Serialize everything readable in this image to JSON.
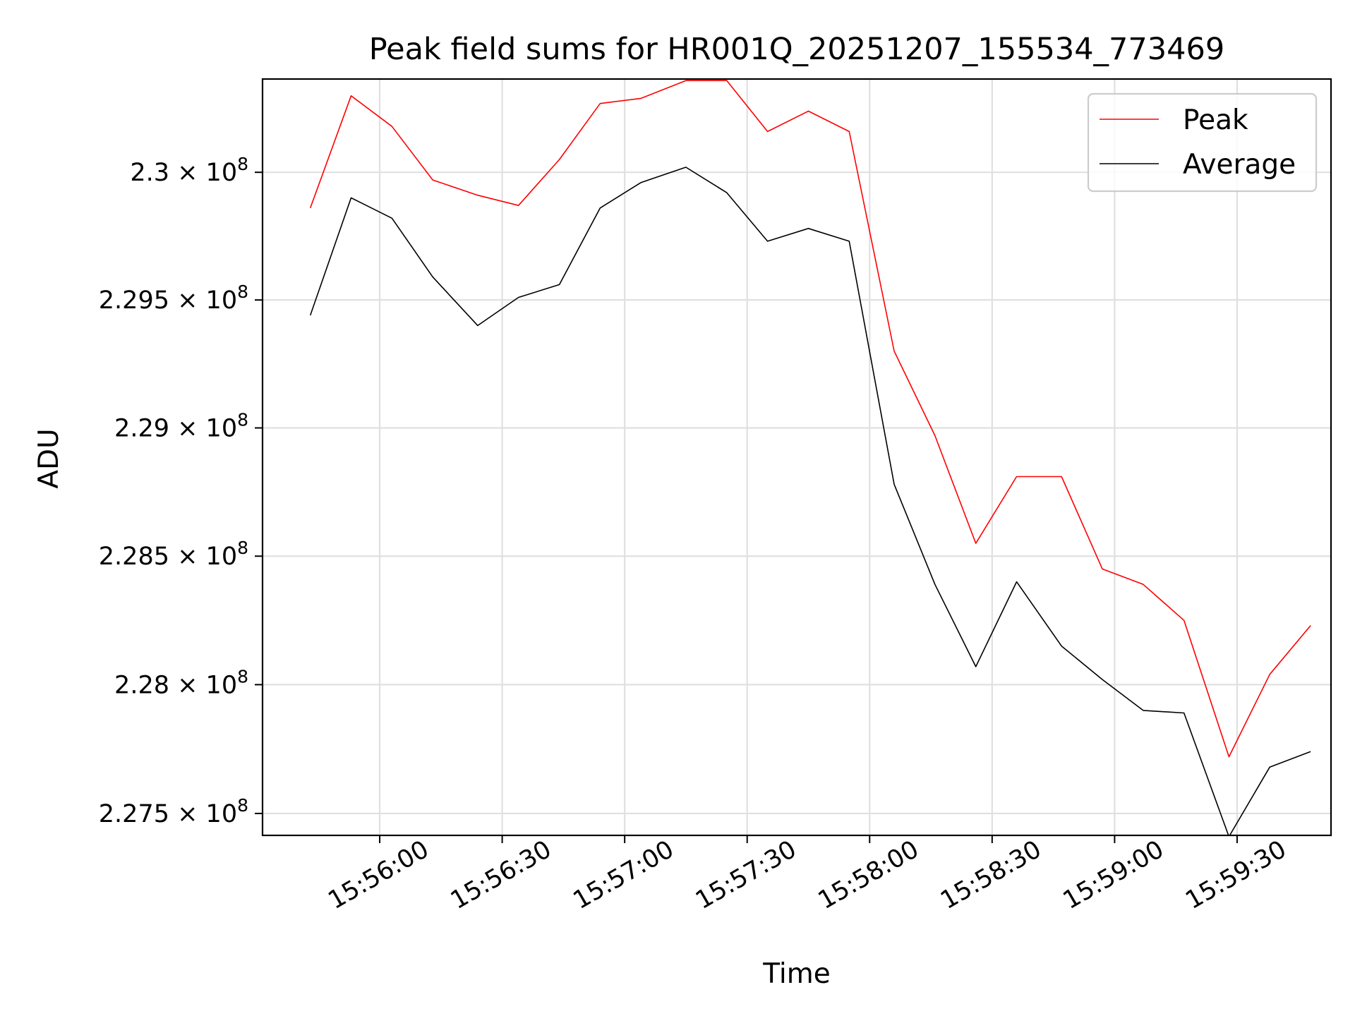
{
  "chart_data": {
    "type": "line",
    "title": "Peak field sums for HR001Q_20251207_155534_773469",
    "xlabel": "Time",
    "ylabel": "ADU",
    "x_ticks": [
      "15:56:00",
      "15:56:30",
      "15:57:00",
      "15:57:30",
      "15:58:00",
      "15:58:30",
      "15:59:00",
      "15:59:30"
    ],
    "y_ticks": [
      {
        "value": 227500000,
        "mantissa": "2.275",
        "exponent": "8"
      },
      {
        "value": 228000000,
        "mantissa": "2.28",
        "exponent": "8"
      },
      {
        "value": 228500000,
        "mantissa": "2.285",
        "exponent": "8"
      },
      {
        "value": 229000000,
        "mantissa": "2.29",
        "exponent": "8"
      },
      {
        "value": 229500000,
        "mantissa": "2.295",
        "exponent": "8"
      },
      {
        "value": 230000000,
        "mantissa": "2.3",
        "exponent": "8"
      }
    ],
    "y_scale": "log",
    "grid": true,
    "legend_position": "top-right",
    "x": [
      "15:55:43",
      "15:55:53",
      "15:56:03",
      "15:56:13",
      "15:56:24",
      "15:56:34",
      "15:56:44",
      "15:56:54",
      "15:57:04",
      "15:57:15",
      "15:57:25",
      "15:57:35",
      "15:57:45",
      "15:57:55",
      "15:58:06",
      "15:58:16",
      "15:58:26",
      "15:58:36",
      "15:58:47",
      "15:58:57",
      "15:59:07",
      "15:59:17",
      "15:59:28",
      "15:59:38",
      "15:59:48"
    ],
    "series": [
      {
        "name": "Peak",
        "color": "#ff0000",
        "values": [
          229860000,
          230300000,
          230180000,
          229970000,
          229910000,
          229870000,
          230050000,
          230270000,
          230290000,
          230360000,
          230360000,
          230160000,
          230240000,
          230160000,
          229300000,
          228970000,
          228550000,
          228810000,
          228810000,
          228450000,
          228390000,
          228250000,
          227720000,
          228040000,
          228230000
        ]
      },
      {
        "name": "Average",
        "color": "#000000",
        "values": [
          229440000,
          229900000,
          229820000,
          229590000,
          229400000,
          229510000,
          229560000,
          229860000,
          229960000,
          230020000,
          229920000,
          229730000,
          229780000,
          229730000,
          228780000,
          228390000,
          228070000,
          228400000,
          228150000,
          228020000,
          227900000,
          227890000,
          227410000,
          227680000,
          227740000
        ]
      }
    ]
  }
}
